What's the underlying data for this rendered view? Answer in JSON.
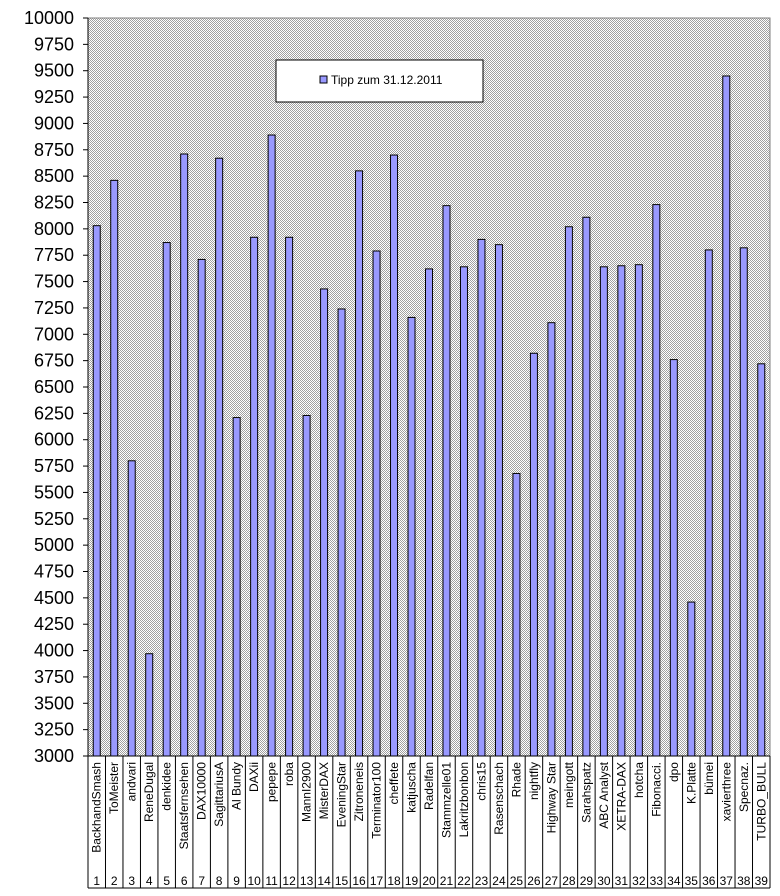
{
  "chart_data": {
    "type": "bar",
    "ylim": [
      3000,
      10000
    ],
    "ytick_step": 250,
    "grid": false,
    "legend_position": "top-center",
    "series": [
      {
        "name": "Tipp  zum 31.12.2011",
        "values": [
          8030,
          8460,
          5800,
          3970,
          7870,
          8710,
          7710,
          8670,
          6210,
          7920,
          8890,
          7920,
          6230,
          7430,
          7240,
          8550,
          7790,
          8700,
          7160,
          7620,
          8220,
          7640,
          7900,
          7850,
          5680,
          6820,
          7110,
          8020,
          8110,
          7640,
          7650,
          7660,
          8230,
          6760,
          4460,
          7800,
          9450,
          7820,
          6720
        ]
      }
    ],
    "categories": [
      "BackhandSmash",
      "ToMeister",
      "andvari",
      "ReneDugal",
      "denkidee",
      "Staatsfernsehen",
      "DAX10000",
      "SagittariusA",
      "Al Bundy",
      "DAXii",
      "pepepe",
      "roba",
      "MannI2900",
      "MisterDAX",
      "EveningStar",
      "Zitroneneis",
      "Terminator100",
      "cheffete",
      "katjuscha",
      "Radelfan",
      "Stammzelle01",
      "Lakritzbonbon",
      "chris15",
      "Rasenschach",
      "Rhade",
      "nightfly",
      "Highway Star",
      "meingott",
      "Sarahspatz",
      "ABC Analyst",
      "XETRA-DAX",
      "hotcha",
      "Fibonacci.",
      "dpo",
      "K.Platte",
      "bümei",
      "xavierthree",
      "Specnaz.",
      "TURBO_BULL"
    ],
    "numbers": [
      "1",
      "2",
      "3",
      "4",
      "5",
      "6",
      "7",
      "8",
      "9",
      "10",
      "11",
      "12",
      "13",
      "14",
      "15",
      "16",
      "17",
      "18",
      "19",
      "20",
      "21",
      "22",
      "23",
      "24",
      "25",
      "26",
      "27",
      "28",
      "29",
      "30",
      "31",
      "32",
      "33",
      "34",
      "35",
      "36",
      "37",
      "38",
      "39"
    ],
    "colors": {
      "bar_fill": "#9999FF",
      "bar_stroke": "#000000",
      "plot_background": "#C0C0C0"
    }
  }
}
